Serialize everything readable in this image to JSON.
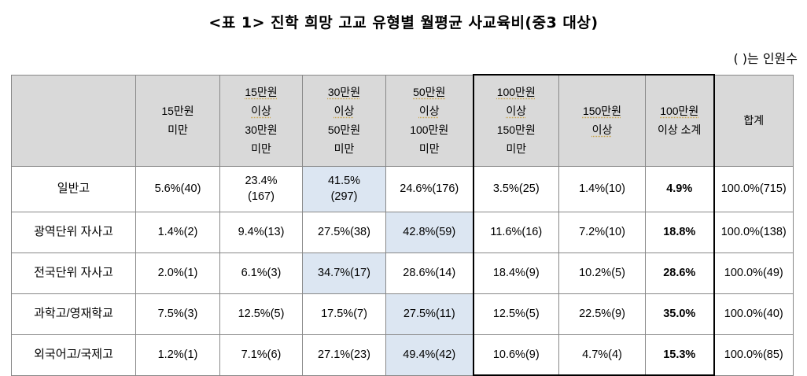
{
  "title": "<표 1> 진학 희망 고교 유형별 월평균 사교육비(중3 대상)",
  "note": "( )는 인원수",
  "table": {
    "headers": [
      [
        ""
      ],
      [
        "15만원",
        "미만"
      ],
      [
        "15만원",
        "이상",
        "30만원",
        "미만"
      ],
      [
        "30만원",
        "이상",
        "50만원",
        "미만"
      ],
      [
        "50만원",
        "이상",
        "100만원",
        "미만"
      ],
      [
        "100만원",
        "이상",
        "150만원",
        "미만"
      ],
      [
        "150만원",
        "이상"
      ],
      [
        "100만원",
        "이상 소계"
      ],
      [
        "합계"
      ]
    ],
    "rows": [
      {
        "label": "일반고",
        "cells": [
          [
            "5.6%(40)"
          ],
          [
            "23.4%",
            "(167)"
          ],
          [
            "41.5%",
            "(297)"
          ],
          [
            "24.6%(176)"
          ],
          [
            "3.5%(25)"
          ],
          [
            "1.4%(10)"
          ],
          [
            "4.9%"
          ],
          [
            "100.0%(715)"
          ]
        ],
        "highlight": 2
      },
      {
        "label": "광역단위 자사고",
        "cells": [
          [
            "1.4%(2)"
          ],
          [
            "9.4%(13)"
          ],
          [
            "27.5%(38)"
          ],
          [
            "42.8%(59)"
          ],
          [
            "11.6%(16)"
          ],
          [
            "7.2%(10)"
          ],
          [
            "18.8%"
          ],
          [
            "100.0%(138)"
          ]
        ],
        "highlight": 3
      },
      {
        "label": "전국단위 자사고",
        "cells": [
          [
            "2.0%(1)"
          ],
          [
            "6.1%(3)"
          ],
          [
            "34.7%(17)"
          ],
          [
            "28.6%(14)"
          ],
          [
            "18.4%(9)"
          ],
          [
            "10.2%(5)"
          ],
          [
            "28.6%"
          ],
          [
            "100.0%(49)"
          ]
        ],
        "highlight": 2
      },
      {
        "label": "과학고/영재학교",
        "cells": [
          [
            "7.5%(3)"
          ],
          [
            "12.5%(5)"
          ],
          [
            "17.5%(7)"
          ],
          [
            "27.5%(11)"
          ],
          [
            "12.5%(5)"
          ],
          [
            "22.5%(9)"
          ],
          [
            "35.0%"
          ],
          [
            "100.0%(40)"
          ]
        ],
        "highlight": 3
      },
      {
        "label": "외국어고/국제고",
        "cells": [
          [
            "1.2%(1)"
          ],
          [
            "7.1%(6)"
          ],
          [
            "27.1%(23)"
          ],
          [
            "49.4%(42)"
          ],
          [
            "10.6%(9)"
          ],
          [
            "4.7%(4)"
          ],
          [
            "15.3%"
          ],
          [
            "100.0%(85)"
          ]
        ],
        "highlight": 3
      }
    ],
    "colors": {
      "header_bg": "#d9d9d9",
      "highlight_bg": "#dce6f2",
      "border": "#888888",
      "box_border": "#000000"
    }
  }
}
